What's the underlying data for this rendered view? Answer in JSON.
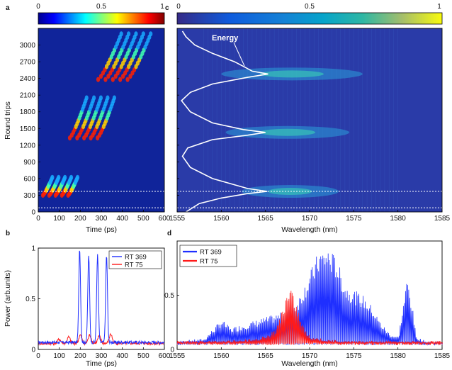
{
  "panel_labels": [
    "a",
    "b",
    "c",
    "d"
  ],
  "colors": {
    "map_low": "#10249a",
    "series_blue": "#1f2fff",
    "series_red": "#ff1a1a",
    "energy_trace": "#ffffff",
    "guide_line": "#ffffff"
  },
  "chart_data": [
    {
      "panel": "a",
      "type": "heatmap",
      "colormap": "jet",
      "colorbar": {
        "ticks": [
          "0",
          "0.5",
          "1"
        ],
        "range": [
          0,
          1
        ]
      },
      "xlabel": "Time (ps)",
      "ylabel": "Round trips",
      "xlim": [
        0,
        600
      ],
      "ylim": [
        0,
        3300
      ],
      "xticks": [
        "0",
        "100",
        "200",
        "300",
        "400",
        "500",
        "600"
      ],
      "yticks": [
        "0",
        "300",
        "600",
        "900",
        "1200",
        "1500",
        "1800",
        "2100",
        "2400",
        "2700",
        "3000"
      ],
      "guide_lines_y": [
        369,
        75
      ],
      "pulse_groups": [
        {
          "start_rt": 300,
          "end_rt": 620,
          "times_start": [
            22,
            52,
            82,
            112,
            142
          ],
          "drift": 45
        },
        {
          "start_rt": 1330,
          "end_rt": 2050,
          "times_start": [
            150,
            185,
            218,
            250,
            282
          ],
          "drift": 80
        },
        {
          "start_rt": 2380,
          "end_rt": 3200,
          "times_start": [
            285,
            320,
            355,
            390,
            425
          ],
          "drift": 110
        }
      ]
    },
    {
      "panel": "b",
      "type": "line",
      "xlabel": "Time (ps)",
      "ylabel": "Power (arb.units)",
      "xlim": [
        0,
        600
      ],
      "ylim": [
        0,
        1
      ],
      "xticks": [
        "0",
        "100",
        "200",
        "300",
        "400",
        "500",
        "600"
      ],
      "yticks": [
        "0",
        "0.5",
        "1"
      ],
      "legend": "top-right",
      "series": [
        {
          "name": "RT 369",
          "color": "#1f2fff",
          "pulse_centers": [
            197,
            240,
            282,
            325
          ],
          "pulse_peaks": [
            1.0,
            0.93,
            0.93,
            0.93
          ],
          "baseline": 0.07
        },
        {
          "name": "RT 75",
          "color": "#ff1a1a",
          "pulse_centers": [
            100,
            145,
            200,
            245,
            290,
            345
          ],
          "pulse_peaks": [
            0.1,
            0.12,
            0.14,
            0.14,
            0.13,
            0.15
          ],
          "baseline": 0.06
        }
      ]
    },
    {
      "panel": "c",
      "type": "heatmap",
      "colormap": "parula",
      "colorbar": {
        "ticks": [
          "0",
          "0.5",
          "1"
        ],
        "range": [
          0,
          1
        ]
      },
      "xlabel": "Wavelength (nm)",
      "xlim": [
        1555,
        1585
      ],
      "ylim": [
        0,
        3300
      ],
      "xticks": [
        "1555",
        "1560",
        "1565",
        "1570",
        "1575",
        "1580",
        "1585"
      ],
      "guide_lines_y": [
        369,
        75
      ],
      "annotation": "Energy",
      "energy_trace": {
        "rt": [
          0,
          150,
          250,
          330,
          369,
          420,
          600,
          800,
          1000,
          1150,
          1300,
          1380,
          1430,
          1480,
          1600,
          1800,
          2000,
          2150,
          2300,
          2420,
          2480,
          2530,
          2600,
          2700,
          2850,
          3000,
          3150,
          3250
        ],
        "wavelength": [
          1556,
          1557.5,
          1560,
          1563,
          1565.2,
          1563,
          1559,
          1556.5,
          1555.6,
          1556.2,
          1559,
          1563,
          1565,
          1562.5,
          1559,
          1556.5,
          1555.5,
          1556.5,
          1559,
          1563,
          1565.3,
          1563.5,
          1562.7,
          1561.5,
          1559,
          1557,
          1556,
          1555.6
        ]
      },
      "spectral_bands": [
        {
          "rt": 369,
          "center": 1567.8,
          "width": 5.5
        },
        {
          "rt": 1430,
          "center": 1567.5,
          "width": 7
        },
        {
          "rt": 2480,
          "center": 1568,
          "width": 8
        }
      ]
    },
    {
      "panel": "d",
      "type": "line",
      "xlabel": "Wavelength (nm)",
      "xlim": [
        1555,
        1585
      ],
      "ylim": [
        0,
        1
      ],
      "xticks": [
        "1555",
        "1560",
        "1565",
        "1570",
        "1575",
        "1580",
        "1585"
      ],
      "yticks": [
        "0",
        "0.5"
      ],
      "legend": "top-left",
      "series": [
        {
          "name": "RT 369",
          "color": "#1f2fff",
          "envelope_x": [
            1555,
            1558,
            1560,
            1561,
            1563,
            1565,
            1567,
            1568.5,
            1570,
            1571,
            1572,
            1573,
            1574,
            1575,
            1576,
            1577,
            1578,
            1579,
            1580,
            1581,
            1581.5,
            1582,
            1583,
            1585
          ],
          "envelope_y": [
            0.08,
            0.1,
            0.28,
            0.2,
            0.25,
            0.3,
            0.35,
            0.45,
            0.72,
            0.92,
            0.95,
            0.85,
            0.6,
            0.55,
            0.5,
            0.4,
            0.25,
            0.15,
            0.12,
            0.68,
            0.45,
            0.12,
            0.08,
            0.07
          ]
        },
        {
          "name": "RT 75",
          "color": "#ff1a1a",
          "envelope_x": [
            1555,
            1560,
            1564,
            1566,
            1567,
            1567.5,
            1568,
            1568.5,
            1569,
            1570,
            1572,
            1575,
            1585
          ],
          "envelope_y": [
            0.08,
            0.08,
            0.1,
            0.18,
            0.4,
            0.55,
            0.57,
            0.4,
            0.25,
            0.12,
            0.09,
            0.08,
            0.08
          ]
        }
      ]
    }
  ]
}
